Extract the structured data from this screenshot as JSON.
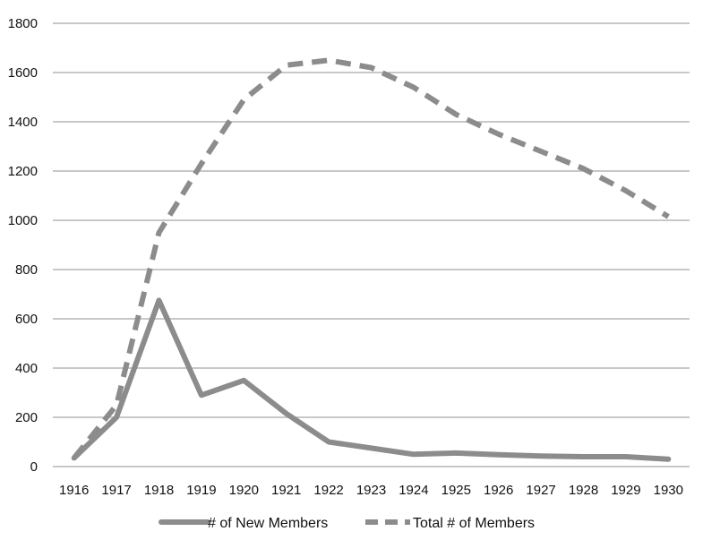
{
  "chart_data": {
    "type": "line",
    "title": "",
    "xlabel": "",
    "ylabel": "",
    "x": [
      "1916",
      "1917",
      "1918",
      "1919",
      "1920",
      "1921",
      "1922",
      "1923",
      "1924",
      "1925",
      "1926",
      "1927",
      "1928",
      "1929",
      "1930"
    ],
    "ylim": [
      0,
      1800
    ],
    "yticks": [
      0,
      200,
      400,
      600,
      800,
      1000,
      1200,
      1400,
      1600,
      1800
    ],
    "grid": true,
    "legend_position": "bottom",
    "series": [
      {
        "name": "# of New Members",
        "style": "solid",
        "color": "#8c8c8c",
        "values": [
          35,
          200,
          675,
          290,
          350,
          215,
          100,
          75,
          50,
          55,
          48,
          43,
          40,
          40,
          30
        ]
      },
      {
        "name": "Total # of Members",
        "style": "dashed",
        "color": "#8c8c8c",
        "values": [
          35,
          250,
          950,
          1230,
          1490,
          1630,
          1650,
          1620,
          1540,
          1430,
          1350,
          1280,
          1210,
          1120,
          1015
        ]
      }
    ]
  }
}
